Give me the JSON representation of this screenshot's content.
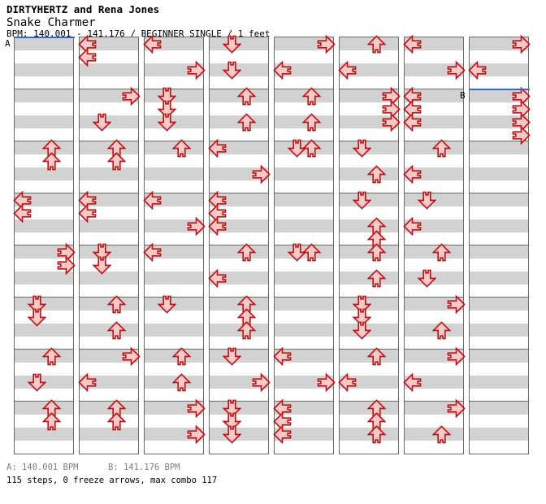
{
  "header": {
    "artist": "DIRTYHERTZ and Rena Jones",
    "song_title": "Snake Charmer",
    "subtitle": "BPM: 140.001 - 141.176 / BEGINNER SINGLE / 1 feet"
  },
  "footer": {
    "bpm_a": "A: 140.001 BPM",
    "bpm_b": "B: 141.176 BPM",
    "summary": "115 steps, 0 freeze arrows, max combo 117"
  },
  "chart_data": {
    "type": "step-chart",
    "title": "Snake Charmer - BEGINNER SINGLE (1 feet)",
    "description": "DDR-style step chart. 8 vertical strips read top-to-bottom then left-to-right. Each strip holds 8 measures of 4 beat-rows (32 beat rows per strip). Arrow glyph direction matches its lane.",
    "lanes": [
      "left",
      "down",
      "up",
      "right"
    ],
    "columns": 8,
    "beat_rows_per_column": 32,
    "beats_per_measure": 4,
    "stats": {
      "steps": 115,
      "freeze_arrows": 0,
      "max_combo": 117
    },
    "bpm_markers": [
      {
        "label": "A",
        "bpm": "140.001",
        "column": 0,
        "beat_row": 0
      },
      {
        "label": "B",
        "bpm": "141.176",
        "column": 7,
        "beat_row": 4
      }
    ],
    "note_format": "[column_index, lane_index(0=left,1=down,2=up,3=right), beat_row]",
    "notes": [
      [
        0,
        2,
        8
      ],
      [
        0,
        2,
        9
      ],
      [
        0,
        0,
        12
      ],
      [
        0,
        0,
        13
      ],
      [
        0,
        3,
        16
      ],
      [
        0,
        3,
        17
      ],
      [
        0,
        1,
        20
      ],
      [
        0,
        1,
        21
      ],
      [
        0,
        2,
        24
      ],
      [
        0,
        1,
        26
      ],
      [
        0,
        2,
        28
      ],
      [
        0,
        2,
        29
      ],
      [
        1,
        0,
        0
      ],
      [
        1,
        0,
        1
      ],
      [
        1,
        3,
        4
      ],
      [
        1,
        1,
        6
      ],
      [
        1,
        2,
        8
      ],
      [
        1,
        2,
        9
      ],
      [
        1,
        0,
        12
      ],
      [
        1,
        0,
        13
      ],
      [
        1,
        1,
        16
      ],
      [
        1,
        1,
        17
      ],
      [
        1,
        2,
        20
      ],
      [
        1,
        2,
        22
      ],
      [
        1,
        3,
        24
      ],
      [
        1,
        0,
        26
      ],
      [
        1,
        2,
        28
      ],
      [
        1,
        2,
        29
      ],
      [
        2,
        0,
        0
      ],
      [
        2,
        3,
        2
      ],
      [
        2,
        1,
        4
      ],
      [
        2,
        1,
        5
      ],
      [
        2,
        1,
        6
      ],
      [
        2,
        2,
        8
      ],
      [
        2,
        0,
        12
      ],
      [
        2,
        3,
        14
      ],
      [
        2,
        0,
        16
      ],
      [
        2,
        1,
        20
      ],
      [
        2,
        2,
        24
      ],
      [
        2,
        2,
        26
      ],
      [
        2,
        3,
        28
      ],
      [
        2,
        3,
        30
      ],
      [
        3,
        1,
        0
      ],
      [
        3,
        1,
        2
      ],
      [
        3,
        2,
        4
      ],
      [
        3,
        2,
        6
      ],
      [
        3,
        0,
        8
      ],
      [
        3,
        3,
        10
      ],
      [
        3,
        0,
        12
      ],
      [
        3,
        0,
        13
      ],
      [
        3,
        0,
        14
      ],
      [
        3,
        2,
        16
      ],
      [
        3,
        0,
        18
      ],
      [
        3,
        2,
        20
      ],
      [
        3,
        2,
        21
      ],
      [
        3,
        2,
        22
      ],
      [
        3,
        1,
        24
      ],
      [
        3,
        3,
        26
      ],
      [
        3,
        1,
        28
      ],
      [
        3,
        1,
        29
      ],
      [
        3,
        1,
        30
      ],
      [
        4,
        3,
        0
      ],
      [
        4,
        0,
        2
      ],
      [
        4,
        2,
        4
      ],
      [
        4,
        2,
        6
      ],
      [
        4,
        1,
        8
      ],
      [
        4,
        2,
        8
      ],
      [
        4,
        1,
        16
      ],
      [
        4,
        2,
        16
      ],
      [
        4,
        0,
        24
      ],
      [
        4,
        3,
        26
      ],
      [
        4,
        0,
        28
      ],
      [
        4,
        0,
        29
      ],
      [
        4,
        0,
        30
      ],
      [
        5,
        2,
        0
      ],
      [
        5,
        0,
        2
      ],
      [
        5,
        3,
        4
      ],
      [
        5,
        3,
        5
      ],
      [
        5,
        3,
        6
      ],
      [
        5,
        1,
        8
      ],
      [
        5,
        2,
        10
      ],
      [
        5,
        1,
        12
      ],
      [
        5,
        2,
        14
      ],
      [
        5,
        2,
        15
      ],
      [
        5,
        2,
        16
      ],
      [
        5,
        2,
        18
      ],
      [
        5,
        1,
        20
      ],
      [
        5,
        1,
        21
      ],
      [
        5,
        1,
        22
      ],
      [
        5,
        2,
        24
      ],
      [
        5,
        0,
        26
      ],
      [
        5,
        2,
        28
      ],
      [
        5,
        2,
        29
      ],
      [
        5,
        2,
        30
      ],
      [
        6,
        0,
        0
      ],
      [
        6,
        3,
        2
      ],
      [
        6,
        0,
        4
      ],
      [
        6,
        0,
        5
      ],
      [
        6,
        0,
        6
      ],
      [
        6,
        2,
        8
      ],
      [
        6,
        0,
        10
      ],
      [
        6,
        1,
        12
      ],
      [
        6,
        0,
        14
      ],
      [
        6,
        2,
        16
      ],
      [
        6,
        1,
        18
      ],
      [
        6,
        3,
        20
      ],
      [
        6,
        2,
        22
      ],
      [
        6,
        3,
        24
      ],
      [
        6,
        0,
        26
      ],
      [
        6,
        3,
        28
      ],
      [
        6,
        2,
        30
      ],
      [
        7,
        3,
        0
      ],
      [
        7,
        0,
        2
      ],
      [
        7,
        3,
        4
      ],
      [
        7,
        3,
        5
      ],
      [
        7,
        3,
        6
      ],
      [
        7,
        3,
        7
      ]
    ],
    "colors": {
      "row_even": "#d2d2d2",
      "row_odd": "#ffffff",
      "grid_border": "#6b6b6b",
      "arrow_fill": "#f9c9c9",
      "arrow_stroke": "#c31313",
      "bpm_marker_line": "#3a66cc",
      "footer_bpm_text": "#7f7f7f"
    }
  }
}
